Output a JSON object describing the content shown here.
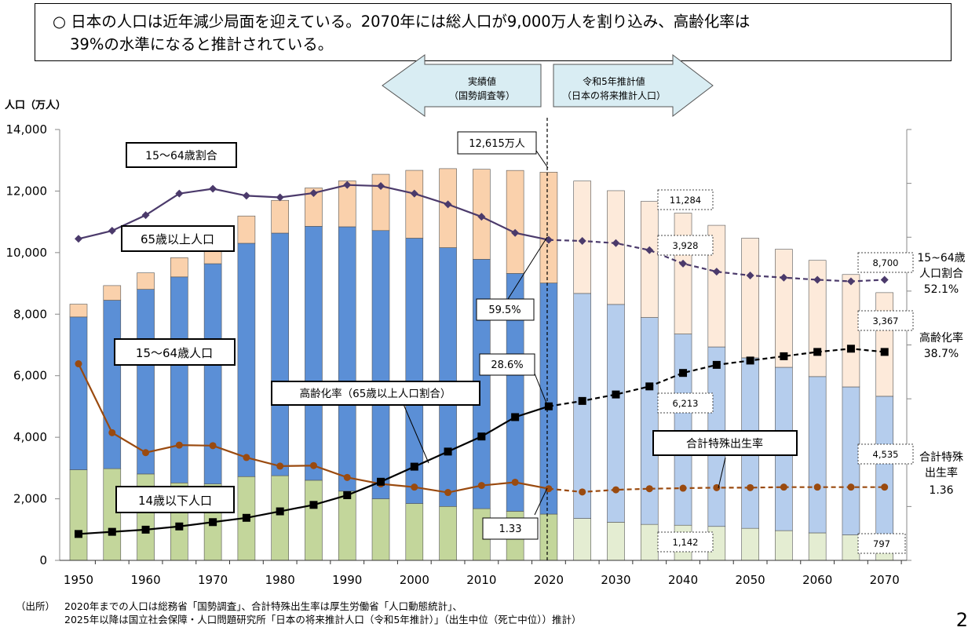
{
  "headline": {
    "line1": "○ 日本の人口は近年減少局面を迎えている。2070年には総人口が9,000万人を割り込み、高齢化率は",
    "line2": "39%の水準になると推計されている。"
  },
  "chart_data": {
    "type": "bar",
    "stacked": true,
    "y_axis_label": "人口（万人）",
    "ylim": [
      0,
      14000
    ],
    "y_ticks": [
      "0",
      "2,000",
      "4,000",
      "6,000",
      "8,000",
      "10,000",
      "12,000",
      "14,000"
    ],
    "x_ticks": [
      "1950",
      "1960",
      "1970",
      "1980",
      "1990",
      "2000",
      "2010",
      "2020",
      "2030",
      "2040",
      "2050",
      "2060",
      "2070"
    ],
    "years": [
      1950,
      1955,
      1960,
      1965,
      1970,
      1975,
      1980,
      1985,
      1990,
      1995,
      2000,
      2005,
      2010,
      2015,
      2020,
      2025,
      2030,
      2035,
      2040,
      2045,
      2050,
      2055,
      2060,
      2065,
      2070
    ],
    "actual_through": 2020,
    "series": [
      {
        "name": "14歳以下人口",
        "color": "#c3d69b",
        "values": [
          2943,
          2980,
          2807,
          2517,
          2482,
          2722,
          2751,
          2603,
          2249,
          2001,
          1847,
          1752,
          1680,
          1595,
          1503,
          1363,
          1240,
          1169,
          1142,
          1103,
          1041,
          966,
          893,
          827,
          797
        ]
      },
      {
        "name": "15～64歳人口",
        "color": "#5b8fd6",
        "values": [
          4966,
          5473,
          6000,
          6693,
          7157,
          7581,
          7883,
          8251,
          8590,
          8716,
          8622,
          8409,
          8103,
          7728,
          7509,
          7310,
          7076,
          6722,
          6213,
          5832,
          5540,
          5307,
          5078,
          4809,
          4535
        ]
      },
      {
        "name": "65歳以上人口",
        "color": "#fad1ac",
        "values": [
          416,
          475,
          535,
          624,
          733,
          887,
          1065,
          1247,
          1493,
          1828,
          2204,
          2567,
          2925,
          3347,
          3603,
          3653,
          3696,
          3773,
          3928,
          3952,
          3888,
          3835,
          3777,
          3652,
          3367
        ]
      }
    ],
    "totals": [
      8320,
      8928,
      9342,
      9828,
      10372,
      11194,
      11706,
      12105,
      12361,
      12557,
      12693,
      12777,
      12806,
      12709,
      12615,
      12326,
      12012,
      11664,
      11284,
      10886,
      10469,
      10108,
      9748,
      9287,
      8700
    ],
    "ratio_lines": [
      {
        "name": "15～64歳割合",
        "axis": "right",
        "values": [
          59.7,
          61.2,
          64.1,
          68.1,
          69.0,
          67.7,
          67.4,
          68.2,
          69.7,
          69.5,
          68.1,
          66.1,
          63.8,
          60.8,
          59.5,
          59.3,
          58.9,
          57.6,
          55.1,
          53.6,
          52.9,
          52.5,
          52.1,
          51.8,
          52.1
        ]
      },
      {
        "name": "高齢化率（65歳以上人口割合）",
        "axis": "right",
        "values": [
          4.9,
          5.3,
          5.7,
          6.3,
          7.1,
          7.9,
          9.1,
          10.3,
          12.1,
          14.6,
          17.4,
          20.2,
          23.0,
          26.6,
          28.6,
          29.6,
          30.8,
          32.3,
          34.8,
          36.3,
          37.1,
          37.9,
          38.7,
          39.3,
          38.7
        ]
      },
      {
        "name": "合計特殊出生率",
        "axis": "fertility",
        "values": [
          3.65,
          2.37,
          2.0,
          2.14,
          2.13,
          1.91,
          1.75,
          1.76,
          1.54,
          1.42,
          1.36,
          1.26,
          1.39,
          1.45,
          1.33,
          1.27,
          1.31,
          1.33,
          1.34,
          1.35,
          1.35,
          1.36,
          1.36,
          1.36,
          1.36
        ]
      }
    ],
    "right_axis_ratio": {
      "min": 0,
      "max": 80
    },
    "fertility_axis": {
      "min": 0,
      "max": 8
    }
  },
  "labels": {
    "actual_arrow": {
      "line1": "実績値",
      "line2": "（国勢調査等）"
    },
    "forecast_arrow": {
      "line1": "令和5年推計値",
      "line2": "（日本の将来推計人口）"
    },
    "total_2020": "12,615万人",
    "series_ratio_label": "15～64歳割合",
    "series_65_label": "65歳以上人口",
    "series_1564_label": "15～64歳人口",
    "series_14_label": "14歳以下人口",
    "aging_label": "高齢化率（65歳以上人口割合）",
    "fertility_label": "合計特殊出生率",
    "val_2020_ratio": "59.5%",
    "val_2020_aging": "28.6%",
    "val_2020_fertility": "1.33",
    "val_2040_total": "11,284",
    "val_2040_65": "3,928",
    "val_2040_1564": "6,213",
    "val_2040_14": "1,142",
    "val_2070_total": "8,700",
    "val_2070_65": "3,367",
    "val_2070_1564": "4,535",
    "val_2070_14": "797",
    "right_ratio": {
      "line1": "15~64歳",
      "line2": "人口割合",
      "line3": "52.1%"
    },
    "right_aging": {
      "line1": "高齢化率",
      "line2": "38.7%"
    },
    "right_fertility": {
      "line1": "合計特殊",
      "line2": "出生率",
      "line3": "1.36"
    }
  },
  "footer": {
    "source_label": "（出所）",
    "line1": "2020年までの人口は総務省「国勢調査」、合計特殊出生率は厚生労働省「人口動態統計」、",
    "line2": "2025年以降は国立社会保障・人口問題研究所「日本の将来推計人口（令和5年推計）」（出生中位（死亡中位））推計）"
  },
  "page_number": "2"
}
